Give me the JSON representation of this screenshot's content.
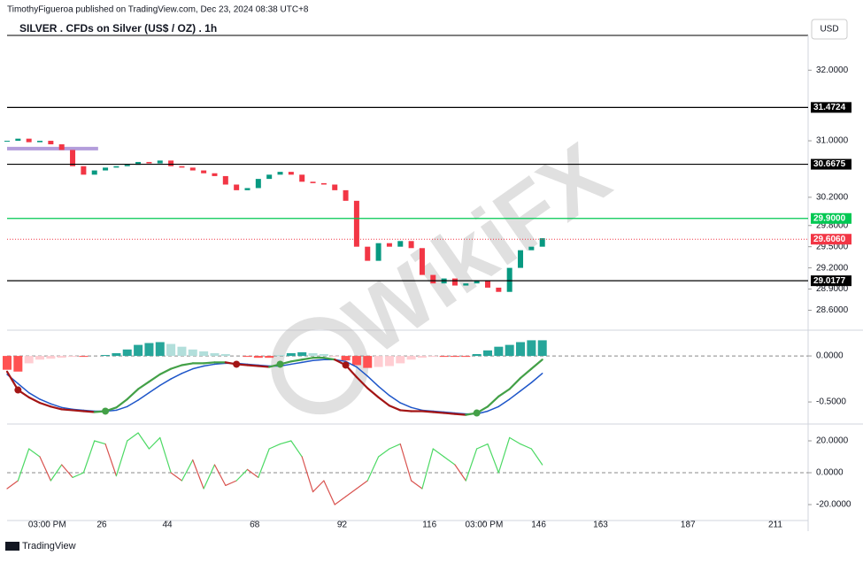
{
  "header": {
    "publisher": "TimothyFigueroa published on TradingView.com, Dec 23, 2024 08:38 UTC+8",
    "title": "SILVER . CFDs on Silver (US$ / OZ) . 1h",
    "currency": "USD",
    "brand": "TradingView",
    "watermark": "WikiFX"
  },
  "chart_data": [
    {
      "type": "candlestick",
      "x": [
        0,
        3,
        6,
        9,
        12,
        15,
        18,
        21,
        24,
        27,
        30,
        33,
        36,
        39,
        42,
        45,
        48,
        51,
        54,
        57,
        60,
        63,
        66,
        69,
        72,
        75,
        78,
        81,
        84,
        87,
        90,
        93,
        96,
        99,
        102,
        105,
        108,
        111,
        114,
        117,
        120,
        123,
        126,
        129,
        132,
        135,
        138,
        141,
        144,
        147
      ],
      "close": [
        31.0,
        31.03,
        30.98,
        31.0,
        30.95,
        30.87,
        30.64,
        30.52,
        30.58,
        30.62,
        30.64,
        30.66,
        30.7,
        30.68,
        30.72,
        30.64,
        30.62,
        30.58,
        30.54,
        30.5,
        30.38,
        30.3,
        30.33,
        30.46,
        30.52,
        30.56,
        30.52,
        30.42,
        30.4,
        30.38,
        30.3,
        30.15,
        29.5,
        29.3,
        29.55,
        29.5,
        29.58,
        29.48,
        29.1,
        28.98,
        29.05,
        28.95,
        28.98,
        29.02,
        28.92,
        28.86,
        29.2,
        29.45,
        29.5,
        29.62
      ],
      "up_color": "#089981",
      "down_color": "#f23645",
      "xlim": [
        0,
        220
      ],
      "ylim": [
        28.33,
        32.48
      ],
      "yticks": [
        {
          "value": 32,
          "label": "32.0000"
        },
        {
          "value": 31,
          "label": "31.0000"
        },
        {
          "value": 30.2,
          "label": "30.2000"
        },
        {
          "value": 29.8,
          "label": "29.8000"
        },
        {
          "value": 29.5,
          "label": "29.5000"
        },
        {
          "value": 29.2,
          "label": "29.2000"
        },
        {
          "value": 28.9,
          "label": "28.9000"
        },
        {
          "value": 28.6,
          "label": "28.6000"
        }
      ],
      "levels": [
        {
          "value": 31.4724,
          "label": "31.4724",
          "color": "#000000",
          "style": "solid"
        },
        {
          "value": 30.6675,
          "label": "30.6675",
          "color": "#000000",
          "style": "solid"
        },
        {
          "value": 29.9,
          "label": "29.9000",
          "color": "#00c853",
          "style": "solid"
        },
        {
          "value": 29.606,
          "label": "29.6060",
          "color": "#f23645",
          "style": "dotted"
        },
        {
          "value": 29.0177,
          "label": "29.0177",
          "color": "#000000",
          "style": "solid"
        }
      ],
      "highlight": {
        "value": 30.89,
        "x": [
          0,
          25
        ],
        "color": "#b39ddb"
      }
    },
    {
      "type": "macd",
      "x": [
        0,
        3,
        6,
        9,
        12,
        15,
        18,
        21,
        24,
        27,
        30,
        33,
        36,
        39,
        42,
        45,
        48,
        51,
        54,
        57,
        60,
        63,
        66,
        69,
        72,
        75,
        78,
        81,
        84,
        87,
        90,
        93,
        96,
        99,
        102,
        105,
        108,
        111,
        114,
        117,
        120,
        123,
        126,
        129,
        132,
        135,
        138,
        141,
        144,
        147
      ],
      "macd": [
        -0.17,
        -0.37,
        -0.45,
        -0.51,
        -0.55,
        -0.58,
        -0.59,
        -0.6,
        -0.61,
        -0.6,
        -0.56,
        -0.47,
        -0.36,
        -0.28,
        -0.2,
        -0.14,
        -0.1,
        -0.08,
        -0.08,
        -0.07,
        -0.07,
        -0.09,
        -0.1,
        -0.11,
        -0.12,
        -0.09,
        -0.06,
        -0.04,
        -0.02,
        -0.02,
        -0.04,
        -0.1,
        -0.23,
        -0.35,
        -0.45,
        -0.54,
        -0.59,
        -0.6,
        -0.6,
        -0.61,
        -0.62,
        -0.63,
        -0.64,
        -0.62,
        -0.55,
        -0.44,
        -0.36,
        -0.24,
        -0.14,
        -0.04
      ],
      "signal": [
        -0.2,
        -0.3,
        -0.4,
        -0.47,
        -0.52,
        -0.56,
        -0.58,
        -0.59,
        -0.6,
        -0.6,
        -0.59,
        -0.55,
        -0.48,
        -0.4,
        -0.32,
        -0.25,
        -0.19,
        -0.14,
        -0.11,
        -0.09,
        -0.08,
        -0.08,
        -0.09,
        -0.1,
        -0.11,
        -0.11,
        -0.09,
        -0.07,
        -0.05,
        -0.04,
        -0.04,
        -0.06,
        -0.12,
        -0.22,
        -0.33,
        -0.43,
        -0.51,
        -0.56,
        -0.59,
        -0.6,
        -0.61,
        -0.62,
        -0.63,
        -0.63,
        -0.6,
        -0.55,
        -0.47,
        -0.38,
        -0.29,
        -0.19
      ],
      "histogram": [
        -0.15,
        -0.17,
        -0.08,
        -0.04,
        -0.03,
        -0.02,
        -0.01,
        -0.01,
        0.0,
        0.01,
        0.03,
        0.07,
        0.12,
        0.14,
        0.15,
        0.13,
        0.1,
        0.07,
        0.05,
        0.03,
        0.02,
        0.0,
        -0.01,
        -0.02,
        -0.02,
        0.01,
        0.03,
        0.04,
        0.03,
        0.02,
        -0.01,
        -0.05,
        -0.1,
        -0.13,
        -0.12,
        -0.11,
        -0.08,
        -0.04,
        -0.02,
        -0.01,
        -0.01,
        -0.01,
        -0.01,
        0.02,
        0.06,
        0.1,
        0.12,
        0.15,
        0.17,
        0.17
      ],
      "macd_colors": [
        "#43a047",
        "#a31515"
      ],
      "signal_color": "#1e56c9",
      "hist_colors": [
        "#26a69a",
        "#b2dfdb",
        "#ff5252",
        "#ffcdd2"
      ],
      "xlim": [
        0,
        220
      ],
      "ylim": [
        -0.73,
        0.27
      ],
      "yticks": [
        {
          "value": 0,
          "label": "0.0000"
        },
        {
          "value": -0.5,
          "label": "-0.5000"
        }
      ]
    },
    {
      "type": "line",
      "x": [
        0,
        3,
        6,
        9,
        12,
        15,
        18,
        21,
        24,
        27,
        30,
        33,
        36,
        39,
        42,
        45,
        48,
        51,
        54,
        57,
        60,
        63,
        66,
        69,
        72,
        75,
        78,
        81,
        84,
        87,
        90,
        93,
        96,
        99,
        102,
        105,
        108,
        111,
        114,
        117,
        120,
        123,
        126,
        129,
        132,
        135,
        138,
        141,
        144,
        147
      ],
      "values": [
        -10,
        -5,
        15,
        10,
        -5,
        5,
        -3,
        0,
        20,
        18,
        -2,
        20,
        25,
        15,
        22,
        0,
        -5,
        8,
        -10,
        5,
        -8,
        -5,
        2,
        -3,
        15,
        18,
        20,
        10,
        -12,
        -5,
        -20,
        -15,
        -10,
        -5,
        10,
        15,
        18,
        -5,
        -10,
        15,
        10,
        5,
        -5,
        15,
        18,
        0,
        22,
        18,
        15,
        5
      ],
      "colors": [
        "#4cd964",
        "#d9534f"
      ],
      "xlim": [
        0,
        220
      ],
      "ylim": [
        -30,
        30
      ],
      "yticks": [
        {
          "value": 20,
          "label": "20.0000"
        },
        {
          "value": 0,
          "label": "0.0000"
        },
        {
          "value": -20,
          "label": "-20.0000"
        }
      ],
      "xticks": [
        {
          "value": 11,
          "label": "03:00 PM"
        },
        26,
        44,
        68,
        92,
        116,
        {
          "value": 131,
          "label": "03:00 PM"
        },
        146,
        163,
        187,
        211
      ]
    }
  ]
}
